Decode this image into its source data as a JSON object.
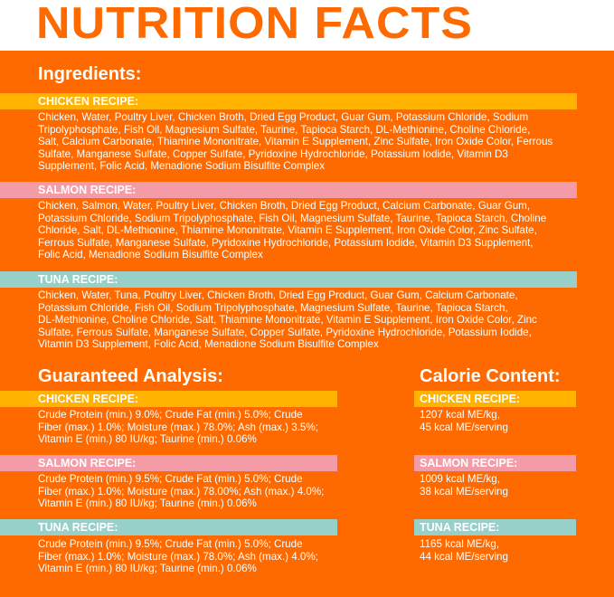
{
  "title": "NUTRITION FACTS",
  "colors": {
    "orange": "#FF6A00",
    "chicken": "#FFB300",
    "salmon": "#F49BA8",
    "tuna": "#96D0C8"
  },
  "ingredients": {
    "heading": "Ingredients:",
    "chicken": {
      "label": "CHICKEN RECIPE:",
      "lines": [
        "Chicken, Water, Poultry Liver, Chicken Broth, Dried Egg Product, Guar Gum, Potassium Chloride, Sodium",
        "Tripolyphosphate, Fish Oil, Magnesium Sulfate, Taurine, Tapioca Starch, DL-Methionine, Choline Chloride,",
        "Salt, Calcium Carbonate, Thiamine Mononitrate, Vitamin E Supplement, Zinc Sulfate, Iron Oxide Color, Ferrous",
        "Sulfate, Manganese Sulfate, Copper Sulfate, Pyridoxine Hydrochloride, Potassium Iodide, Vitamin D3",
        "Supplement, Folic Acid, Menadione Sodium Bisulfite Complex"
      ]
    },
    "salmon": {
      "label": "SALMON RECIPE:",
      "lines": [
        "Chicken,  Salmon, Water, Poultry Liver, Chicken Broth, Dried Egg Product, Calcium Carbonate, Guar Gum,",
        "Potassium Chloride, Sodium Tripolyphosphate, Fish Oil, Magnesium Sulfate, Taurine, Tapioca Starch, Choline",
        "Chloride, Salt, DL-Methionine, Thiamine Mononitrate, Vitamin E Supplement, Iron Oxide Color, Zinc Sulfate,",
        "Ferrous Sulfate, Manganese Sulfate, Pyridoxine Hydrochloride, Potassium Iodide, Vitamin D3 Supplement,",
        "Folic Acid, Menadione Sodium Bisulfite Complex"
      ]
    },
    "tuna": {
      "label": "TUNA RECIPE:",
      "lines": [
        "Chicken, Water, Tuna, Poultry Liver, Chicken Broth, Dried Egg Product, Guar Gum, Calcium Carbonate,",
        "Potassium Chloride, Fish Oil, Sodium Tripolyphosphate, Magnesium Sulfate, Taurine, Tapioca Starch,",
        "DL-Methionine, Choline Chloride, Salt, Thiamine Mononitrate, Vitamin E Supplement, Iron Oxide Color, Zinc",
        "Sulfate, Ferrous Sulfate, Manganese Sulfate, Copper Sulfate, Pyridoxine Hydrochloride, Potassium Iodide,",
        "Vitamin D3 Supplement, Folic Acid, Menadione Sodium Bisulfite Complex"
      ]
    }
  },
  "analysis": {
    "heading": "Guaranteed Analysis:",
    "chicken": {
      "label": "CHICKEN RECIPE:",
      "lines": [
        "Crude Protein (min.) 9.0%; Crude Fat (min.) 5.0%; Crude",
        "Fiber (max.) 1.0%; Moisture (max.) 78.0%; Ash (max.) 3.5%;",
        "Vitamin E (min.) 80 IU/kg; Taurine (min.) 0.06%"
      ]
    },
    "salmon": {
      "label": "SALMON RECIPE:",
      "lines": [
        "Crude Protein (min.) 9.5%; Crude Fat (min.) 5.0%; Crude",
        "Fiber (max.) 1.0%; Moisture (max.) 78.00%; Ash (max.) 4.0%;",
        "Vitamin E (min.) 80 IU/kg; Taurine (min.) 0.06%"
      ]
    },
    "tuna": {
      "label": "TUNA RECIPE:",
      "lines": [
        "Crude Protein (min.) 9.5%; Crude Fat (min.) 5.0%; Crude",
        "Fiber (max.) 1.0%;  Moisture (max.) 78.0%; Ash (max.) 4.0%;",
        "Vitamin E (min.) 80 IU/kg; Taurine (min.) 0.06%"
      ]
    }
  },
  "calories": {
    "heading": "Calorie Content:",
    "chicken": {
      "label": "CHICKEN RECIPE:",
      "lines": [
        "1207 kcal ME/kg,",
        "45 kcal ME/serving"
      ]
    },
    "salmon": {
      "label": "SALMON RECIPE:",
      "lines": [
        "1009 kcal ME/kg,",
        "38 kcal ME/serving"
      ]
    },
    "tuna": {
      "label": "TUNA RECIPE:",
      "lines": [
        "1165 kcal ME/kg,",
        "44 kcal ME/serving"
      ]
    }
  }
}
